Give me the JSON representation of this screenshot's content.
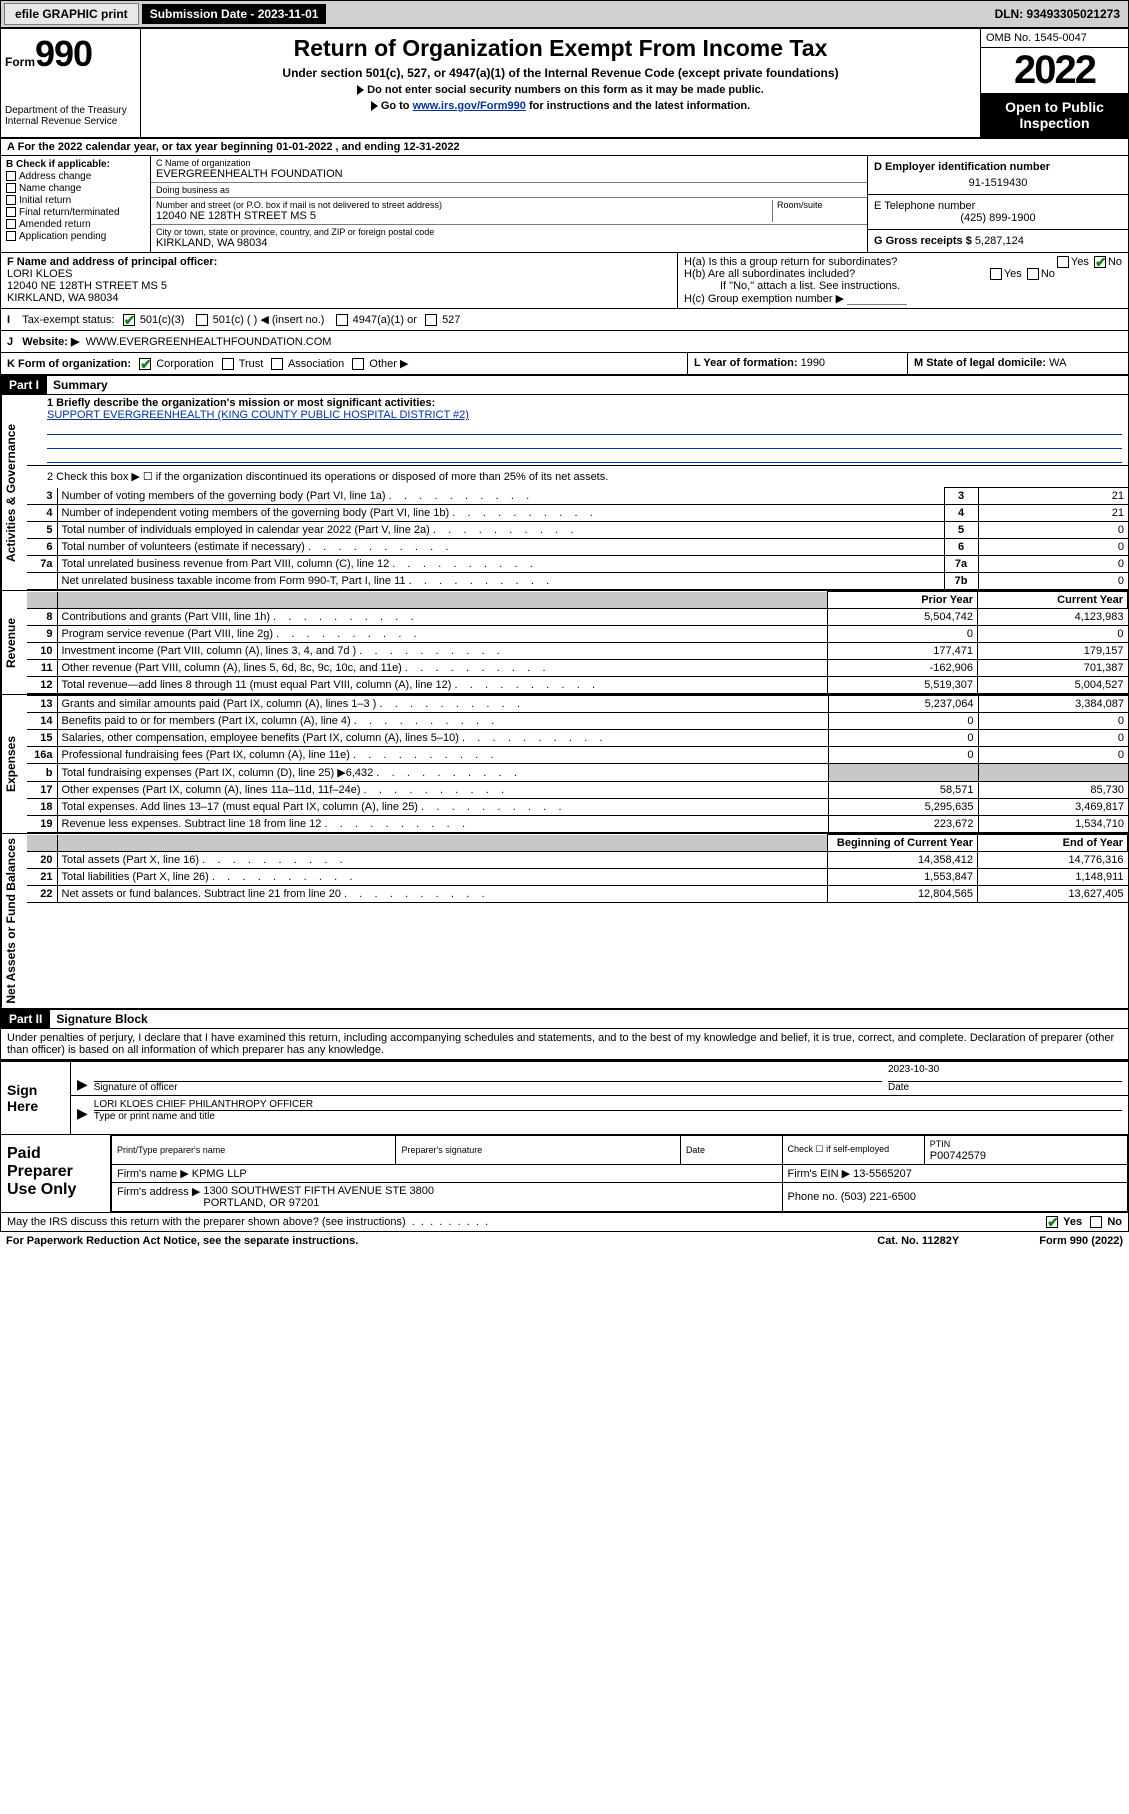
{
  "topbar": {
    "efile": "efile GRAPHIC print",
    "submission_label": "Submission Date - 2023-11-01",
    "dln": "DLN: 93493305021273"
  },
  "header": {
    "form_prefix": "Form",
    "form_number": "990",
    "dept": "Department of the Treasury",
    "irs": "Internal Revenue Service",
    "title": "Return of Organization Exempt From Income Tax",
    "sub1": "Under section 501(c), 527, or 4947(a)(1) of the Internal Revenue Code (except private foundations)",
    "sub2": "Do not enter social security numbers on this form as it may be made public.",
    "sub3_pre": "Go to ",
    "sub3_link": "www.irs.gov/Form990",
    "sub3_post": " for instructions and the latest information.",
    "omb": "OMB No. 1545-0047",
    "year": "2022",
    "otp": "Open to Public Inspection"
  },
  "A": {
    "text": "For the 2022 calendar year, or tax year beginning 01-01-2022     , and ending 12-31-2022"
  },
  "B": {
    "label": "B Check if applicable:",
    "opts": [
      "Address change",
      "Name change",
      "Initial return",
      "Final return/terminated",
      "Amended return",
      "Application pending"
    ]
  },
  "C": {
    "name_label": "C Name of organization",
    "name": "EVERGREENHEALTH FOUNDATION",
    "dba_label": "Doing business as",
    "dba": "",
    "addr_label": "Number and street (or P.O. box if mail is not delivered to street address)",
    "room_label": "Room/suite",
    "addr": "12040 NE 128TH STREET MS 5",
    "city_label": "City or town, state or province, country, and ZIP or foreign postal code",
    "city": "KIRKLAND, WA  98034"
  },
  "D": {
    "label": "D Employer identification number",
    "val": "91-1519430"
  },
  "E": {
    "label": "E Telephone number",
    "val": "(425) 899-1900"
  },
  "G": {
    "label": "G Gross receipts $",
    "val": "5,287,124"
  },
  "F": {
    "label": "F  Name and address of principal officer:",
    "name": "LORI KLOES",
    "addr1": "12040 NE 128TH STREET MS 5",
    "addr2": "KIRKLAND, WA  98034"
  },
  "H": {
    "a_label": "H(a)  Is this a group return for subordinates?",
    "a_no": true,
    "b_label": "H(b)  Are all subordinates included?",
    "b_note": "If \"No,\" attach a list. See instructions.",
    "c_label": "H(c)  Group exemption number",
    "c_val": ""
  },
  "I": {
    "label": "Tax-exempt status:",
    "c501c3": true,
    "opts": [
      "501(c)(3)",
      "501(c) (  ) ◀ (insert no.)",
      "4947(a)(1) or",
      "527"
    ]
  },
  "J": {
    "label": "Website: ▶",
    "val": "WWW.EVERGREENHEALTHFOUNDATION.COM"
  },
  "K": {
    "label": "K Form of organization:",
    "opts": [
      "Corporation",
      "Trust",
      "Association",
      "Other ▶"
    ],
    "sel": 0
  },
  "L": {
    "label": "L Year of formation:",
    "val": "1990"
  },
  "M": {
    "label": "M State of legal domicile:",
    "val": "WA"
  },
  "part1": {
    "hdr": "Part I",
    "title": "Summary",
    "q1_label": "1  Briefly describe the organization's mission or most significant activities:",
    "q1_val": "SUPPORT EVERGREENHEALTH (KING COUNTY PUBLIC HOSPITAL DISTRICT #2)",
    "q2": "2    Check this box ▶ ☐  if the organization discontinued its operations or disposed of more than 25% of its net assets.",
    "gov_label": "Activities & Governance",
    "rev_label": "Revenue",
    "exp_label": "Expenses",
    "net_label": "Net Assets or Fund Balances",
    "gov_rows": [
      {
        "n": "3",
        "d": "Number of voting members of the governing body (Part VI, line 1a)",
        "box": "3",
        "v": "21"
      },
      {
        "n": "4",
        "d": "Number of independent voting members of the governing body (Part VI, line 1b)",
        "box": "4",
        "v": "21"
      },
      {
        "n": "5",
        "d": "Total number of individuals employed in calendar year 2022 (Part V, line 2a)",
        "box": "5",
        "v": "0"
      },
      {
        "n": "6",
        "d": "Total number of volunteers (estimate if necessary)",
        "box": "6",
        "v": "0"
      },
      {
        "n": "7a",
        "d": "Total unrelated business revenue from Part VIII, column (C), line 12",
        "box": "7a",
        "v": "0"
      },
      {
        "n": "",
        "d": "Net unrelated business taxable income from Form 990-T, Part I, line 11",
        "box": "7b",
        "v": "0"
      }
    ],
    "cols": {
      "prior": "Prior Year",
      "current": "Current Year",
      "begin": "Beginning of Current Year",
      "end": "End of Year"
    },
    "rev_rows": [
      {
        "n": "8",
        "d": "Contributions and grants (Part VIII, line 1h)",
        "p": "5,504,742",
        "c": "4,123,983"
      },
      {
        "n": "9",
        "d": "Program service revenue (Part VIII, line 2g)",
        "p": "0",
        "c": "0"
      },
      {
        "n": "10",
        "d": "Investment income (Part VIII, column (A), lines 3, 4, and 7d )",
        "p": "177,471",
        "c": "179,157"
      },
      {
        "n": "11",
        "d": "Other revenue (Part VIII, column (A), lines 5, 6d, 8c, 9c, 10c, and 11e)",
        "p": "-162,906",
        "c": "701,387"
      },
      {
        "n": "12",
        "d": "Total revenue—add lines 8 through 11 (must equal Part VIII, column (A), line 12)",
        "p": "5,519,307",
        "c": "5,004,527"
      }
    ],
    "exp_rows": [
      {
        "n": "13",
        "d": "Grants and similar amounts paid (Part IX, column (A), lines 1–3 )",
        "p": "5,237,064",
        "c": "3,384,087"
      },
      {
        "n": "14",
        "d": "Benefits paid to or for members (Part IX, column (A), line 4)",
        "p": "0",
        "c": "0"
      },
      {
        "n": "15",
        "d": "Salaries, other compensation, employee benefits (Part IX, column (A), lines 5–10)",
        "p": "0",
        "c": "0"
      },
      {
        "n": "16a",
        "d": "Professional fundraising fees (Part IX, column (A), line 11e)",
        "p": "0",
        "c": "0"
      },
      {
        "n": "b",
        "d": "Total fundraising expenses (Part IX, column (D), line 25) ▶6,432",
        "p": "",
        "c": "",
        "grey": true
      },
      {
        "n": "17",
        "d": "Other expenses (Part IX, column (A), lines 11a–11d, 11f–24e)",
        "p": "58,571",
        "c": "85,730"
      },
      {
        "n": "18",
        "d": "Total expenses. Add lines 13–17 (must equal Part IX, column (A), line 25)",
        "p": "5,295,635",
        "c": "3,469,817"
      },
      {
        "n": "19",
        "d": "Revenue less expenses. Subtract line 18 from line 12",
        "p": "223,672",
        "c": "1,534,710"
      }
    ],
    "net_rows": [
      {
        "n": "20",
        "d": "Total assets (Part X, line 16)",
        "p": "14,358,412",
        "c": "14,776,316"
      },
      {
        "n": "21",
        "d": "Total liabilities (Part X, line 26)",
        "p": "1,553,847",
        "c": "1,148,911"
      },
      {
        "n": "22",
        "d": "Net assets or fund balances. Subtract line 21 from line 20",
        "p": "12,804,565",
        "c": "13,627,405"
      }
    ]
  },
  "part2": {
    "hdr": "Part II",
    "title": "Signature Block",
    "pen": "Under penalties of perjury, I declare that I have examined this return, including accompanying schedules and statements, and to the best of my knowledge and belief, it is true, correct, and complete. Declaration of preparer (other than officer) is based on all information of which preparer has any knowledge.",
    "sign_here": "Sign Here",
    "sig_officer_label": "Signature of officer",
    "date_label": "Date",
    "date_val": "2023-10-30",
    "name_title": "LORI KLOES  CHIEF PHILANTHROPY OFFICER",
    "name_title_label": "Type or print name and title",
    "paid": "Paid Preparer Use Only",
    "prep_name_label": "Print/Type preparer's name",
    "prep_sig_label": "Preparer's signature",
    "prep_date_label": "Date",
    "prep_check": "Check ☐ if self-employed",
    "ptin_label": "PTIN",
    "ptin": "P00742579",
    "firm_name_label": "Firm's name    ▶",
    "firm_name": "KPMG LLP",
    "firm_ein_label": "Firm's EIN ▶",
    "firm_ein": "13-5565207",
    "firm_addr_label": "Firm's address ▶",
    "firm_addr": "1300 SOUTHWEST FIFTH AVENUE STE 3800\nPORTLAND, OR  97201",
    "phone_label": "Phone no.",
    "phone": "(503) 221-6500",
    "discuss": "May the IRS discuss this return with the preparer shown above? (see instructions)",
    "discuss_yes": true
  },
  "footer": {
    "pra": "For Paperwork Reduction Act Notice, see the separate instructions.",
    "cat": "Cat. No. 11282Y",
    "form": "Form 990 (2022)"
  }
}
